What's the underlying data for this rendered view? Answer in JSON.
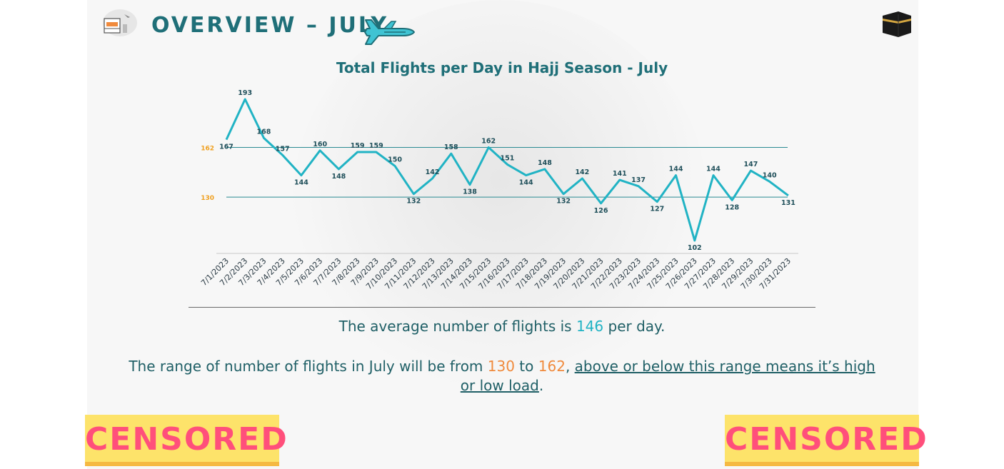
{
  "header": {
    "title": "OVERVIEW – JULY",
    "left_icon": "airport-icon",
    "plane_icon": "airplane-icon",
    "right_icon": "kaaba-icon"
  },
  "chart_data": {
    "type": "line",
    "title": "Total Flights per Day in Hajj Season - July",
    "categories": [
      "7/1/2023",
      "7/2/2023",
      "7/3/2023",
      "7/4/2023",
      "7/5/2023",
      "7/6/2023",
      "7/7/2023",
      "7/8/2023",
      "7/9/2023",
      "7/10/2023",
      "7/11/2023",
      "7/12/2023",
      "7/13/2023",
      "7/14/2023",
      "7/15/2023",
      "7/16/2023",
      "7/17/2023",
      "7/18/2023",
      "7/19/2023",
      "7/20/2023",
      "7/21/2023",
      "7/22/2023",
      "7/23/2023",
      "7/24/2023",
      "7/25/2023",
      "7/26/2023",
      "7/27/2023",
      "7/28/2023",
      "7/29/2023",
      "7/30/2023",
      "7/31/2023"
    ],
    "values": [
      167,
      193,
      168,
      157,
      144,
      160,
      148,
      159,
      159,
      150,
      132,
      142,
      158,
      138,
      162,
      151,
      144,
      148,
      132,
      142,
      126,
      141,
      137,
      127,
      144,
      102,
      144,
      128,
      147,
      140,
      131
    ],
    "reference_lines": [
      162,
      130
    ],
    "line_color": "#21b3c4",
    "reference_label_color": "#f0a020",
    "grid": false
  },
  "summary": {
    "avg_prefix": "The average number of flights is ",
    "avg_value": "146",
    "avg_suffix": " per day.",
    "range_prefix": "The range of number of flights in July will be from ",
    "range_low": "130",
    "range_mid": " to ",
    "range_high": "162",
    "range_comma": ", ",
    "range_link_1": "above or below this range means it’s high",
    "range_link_2": "or low load",
    "range_end": "."
  },
  "censor": {
    "left": "CENSORED",
    "right": "CENSORED"
  },
  "colors": {
    "accent": "#1f6f78",
    "teal": "#21b3c4",
    "orange": "#f08a3c",
    "censor_bg": "#fde36a",
    "censor_text": "#ff4f7b"
  }
}
